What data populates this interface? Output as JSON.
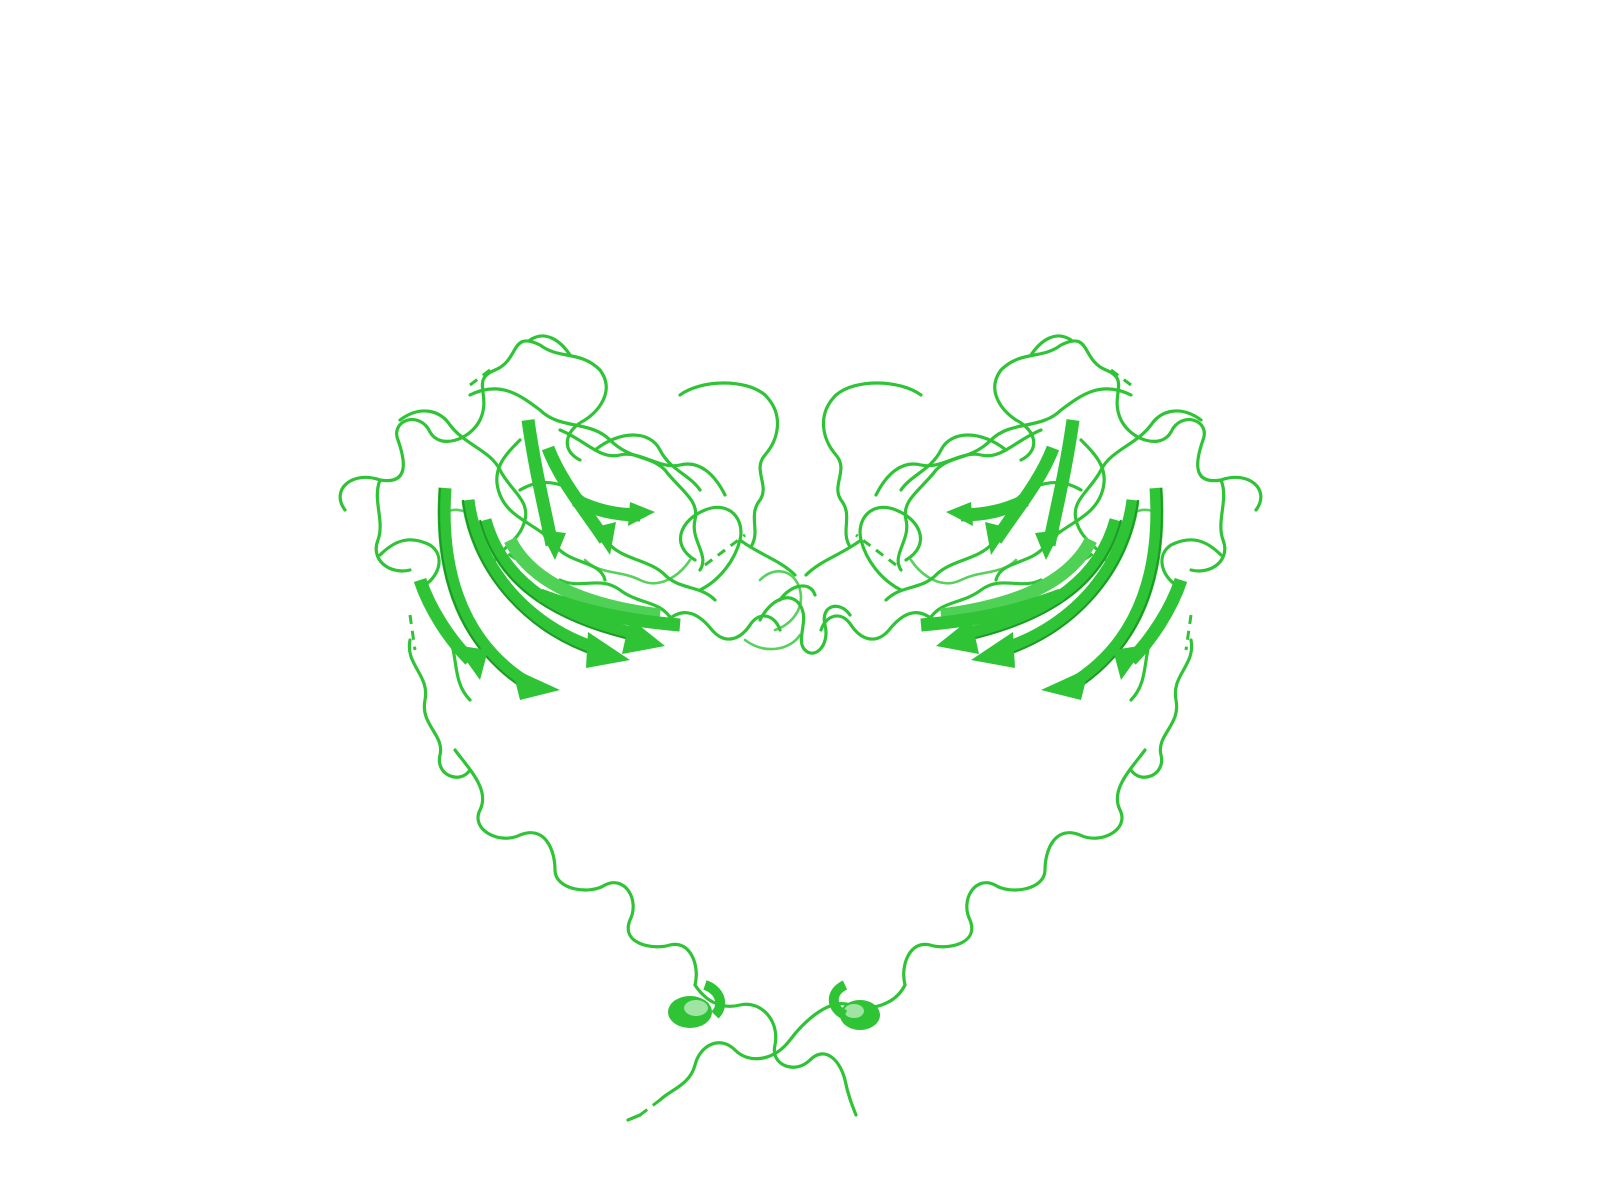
{
  "figure": {
    "description_free": true,
    "background": "#ffffff",
    "colors": {
      "cartoon": "#2ec435",
      "cartoon_dark": "#1e9a26",
      "cartoon_light": "#4fd155"
    },
    "subject": "protein-cartoon",
    "elements": [
      "left-domain",
      "right-domain",
      "linker-loops",
      "c-terminal-helices"
    ]
  }
}
